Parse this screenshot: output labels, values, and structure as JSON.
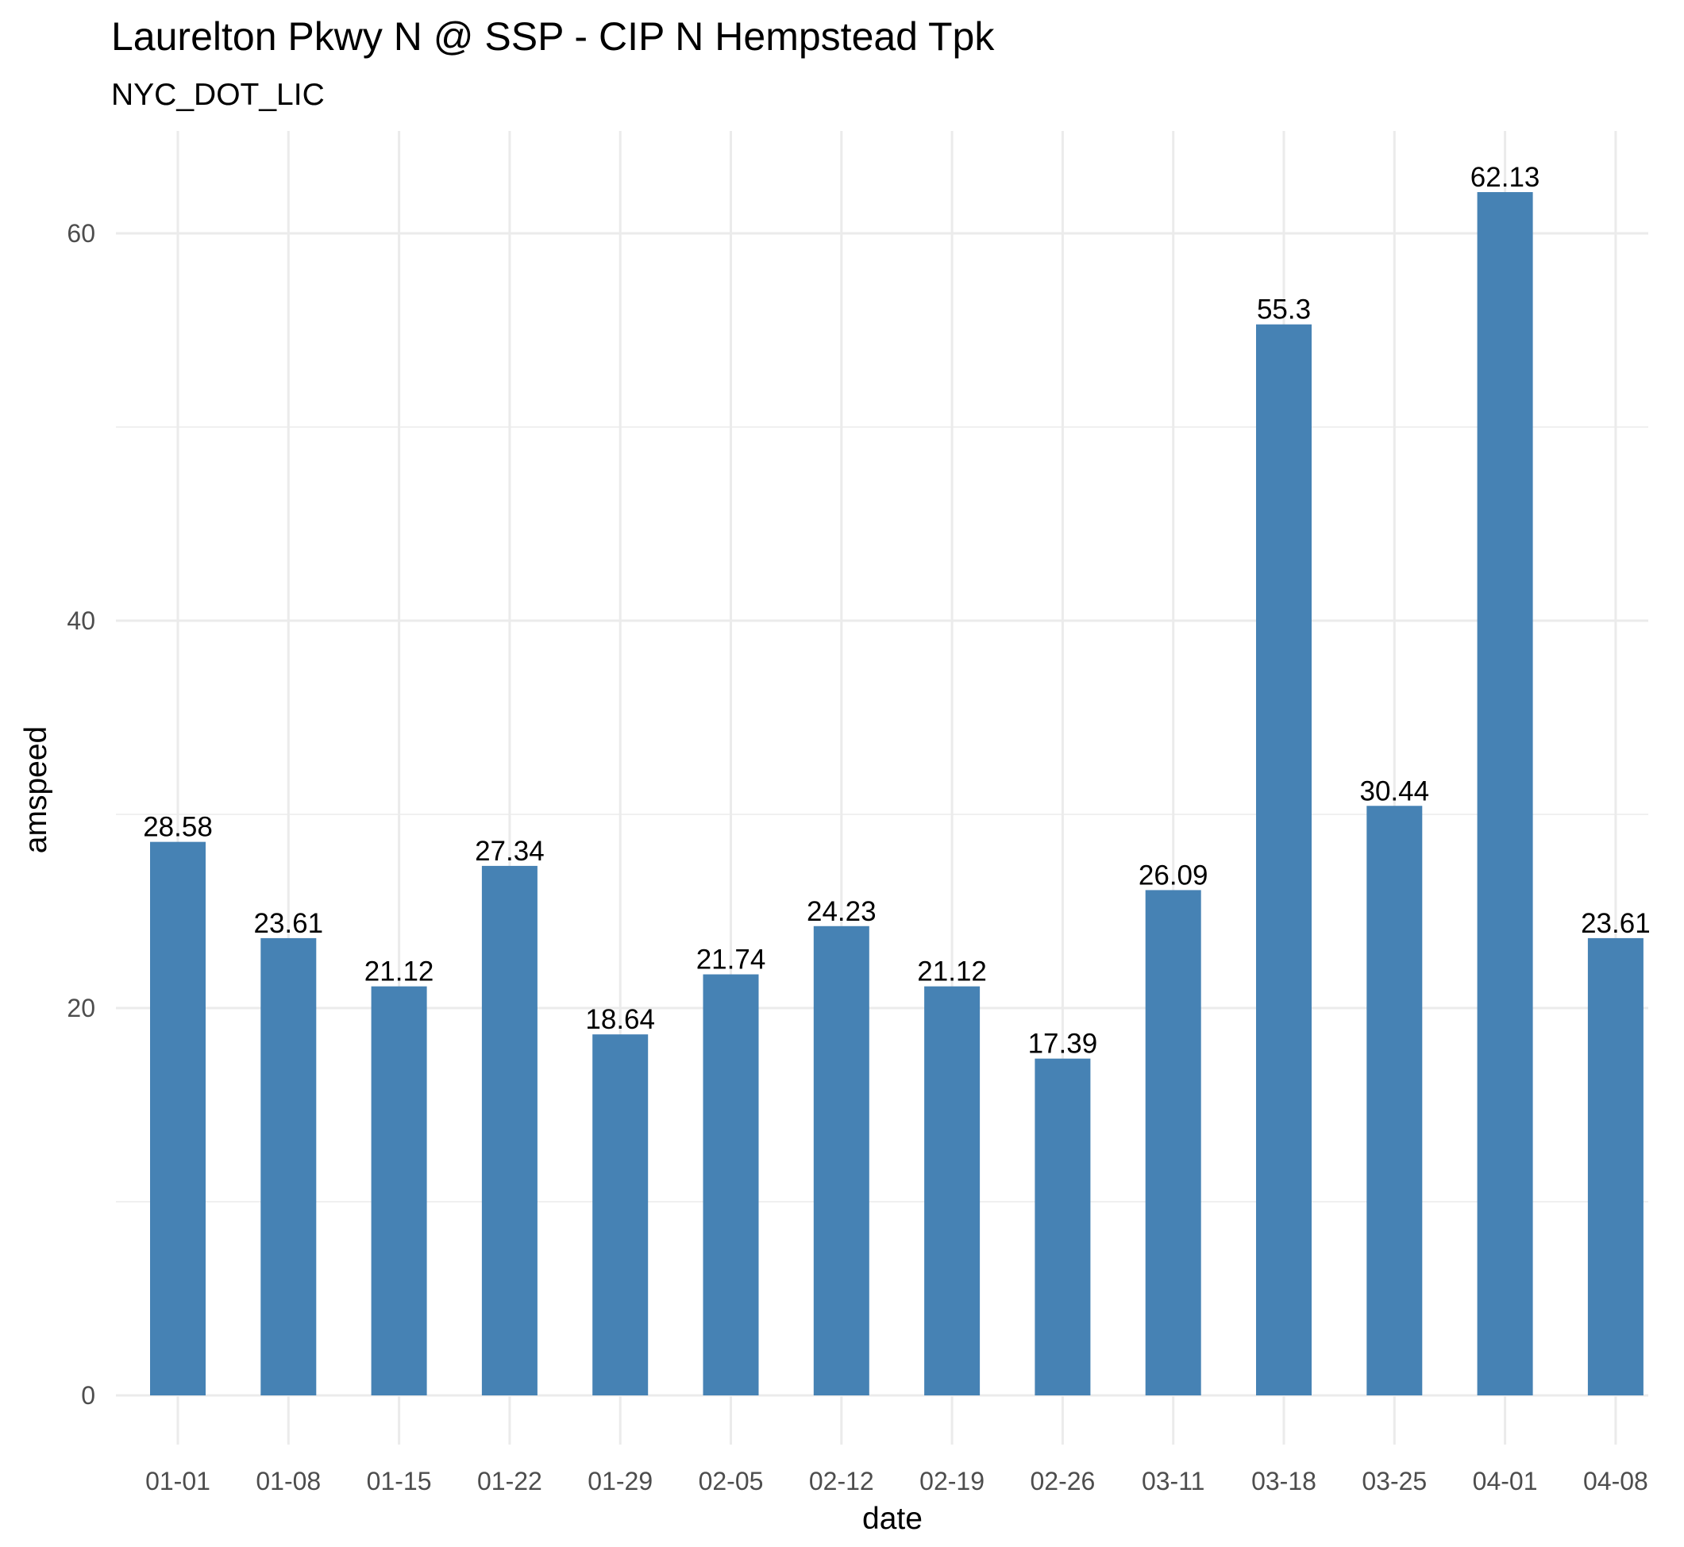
{
  "chart_data": {
    "type": "bar",
    "title": "Laurelton Pkwy N @ SSP - CIP N Hempstead Tpk",
    "subtitle": "NYC_DOT_LIC",
    "xlabel": "date",
    "ylabel": "amspeed",
    "categories": [
      "01-01",
      "01-08",
      "01-15",
      "01-22",
      "01-29",
      "02-05",
      "02-12",
      "02-19",
      "02-26",
      "03-11",
      "03-18",
      "03-25",
      "04-01",
      "04-08"
    ],
    "values": [
      28.58,
      23.61,
      21.12,
      27.34,
      18.64,
      21.74,
      24.23,
      21.12,
      17.39,
      26.09,
      55.3,
      30.44,
      62.13,
      23.61
    ],
    "data_labels": [
      "28.58",
      "23.61",
      "21.12",
      "27.34",
      "18.64",
      "21.74",
      "24.23",
      "21.12",
      "17.39",
      "26.09",
      "55.3",
      "30.44",
      "62.13",
      "23.61"
    ],
    "yticks": [
      0,
      20,
      40,
      60
    ],
    "ytick_labels": [
      "0",
      "20",
      "40",
      "60"
    ],
    "ylim": [
      -3.1,
      65.2
    ],
    "grid": true,
    "bar_color": "#4682b4"
  }
}
